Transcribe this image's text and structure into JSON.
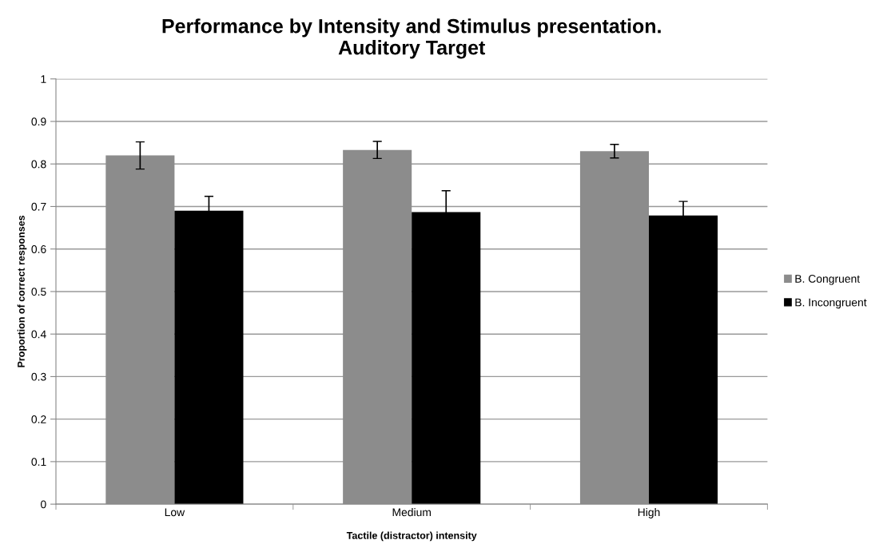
{
  "chart_data": {
    "type": "bar",
    "title": "Performance by Intensity and Stimulus presentation.\nAuditory Target",
    "xlabel": "Tactile (distractor) intensity",
    "ylabel": "Proportion of correct responses",
    "categories": [
      "Low",
      "Medium",
      "High"
    ],
    "series": [
      {
        "name": "B. Congruent",
        "color": "#8c8c8c",
        "values": [
          0.82,
          0.833,
          0.83
        ],
        "errors": [
          0.032,
          0.02,
          0.016
        ]
      },
      {
        "name": "B. Incongruent",
        "color": "#000000",
        "values": [
          0.69,
          0.687,
          0.679
        ],
        "errors": [
          0.034,
          0.05,
          0.033
        ]
      }
    ],
    "ylim": [
      0,
      1
    ],
    "yticks": [
      0,
      0.1,
      0.2,
      0.3,
      0.4,
      0.5,
      0.6,
      0.7,
      0.8,
      0.9,
      1
    ],
    "grid": "y",
    "legend": "right"
  }
}
